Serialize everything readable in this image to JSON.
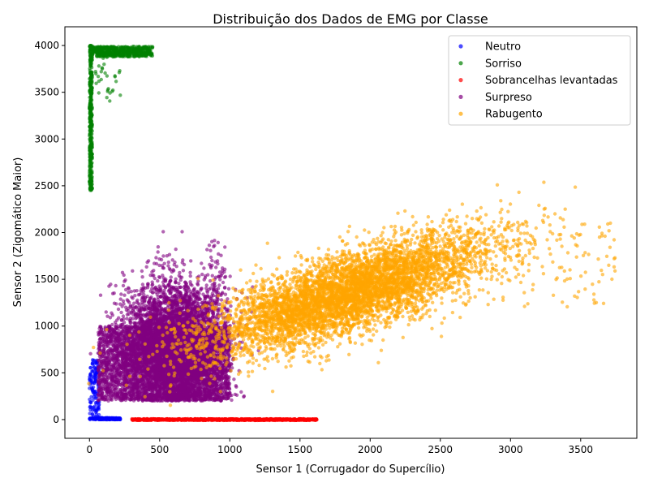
{
  "chart_data": {
    "type": "scatter",
    "title": "Distribuição dos Dados de EMG por Classe",
    "xlabel": "Sensor 1 (Corrugador do Supercílio)",
    "ylabel": "Sensor 2 (Zigomático Maior)",
    "xlim": [
      -175,
      3900
    ],
    "ylim": [
      -200,
      4200
    ],
    "xticks": [
      0,
      500,
      1000,
      1500,
      2000,
      2500,
      3000,
      3500
    ],
    "yticks": [
      0,
      500,
      1000,
      1500,
      2000,
      2500,
      3000,
      3500,
      4000
    ],
    "grid": false,
    "legend_position": "top-right",
    "series": [
      {
        "name": "Neutro",
        "color": "#0000ff",
        "clusters": [
          {
            "kind": "box",
            "x": [
              0,
              220
            ],
            "y": [
              0,
              20
            ],
            "n": 220
          },
          {
            "kind": "box",
            "x": [
              0,
              70
            ],
            "y": [
              20,
              640
            ],
            "n": 140
          }
        ]
      },
      {
        "name": "Sorriso",
        "color": "#008000",
        "clusters": [
          {
            "kind": "box",
            "x": [
              0,
              20
            ],
            "y": [
              2450,
              4000
            ],
            "n": 420
          },
          {
            "kind": "box",
            "x": [
              20,
              450
            ],
            "y": [
              3880,
              3990
            ],
            "n": 520
          },
          {
            "kind": "box",
            "x": [
              40,
              230
            ],
            "y": [
              3400,
              3880
            ],
            "n": 30
          }
        ]
      },
      {
        "name": "Sobrancelhas levantadas",
        "color": "#ff0000",
        "clusters": [
          {
            "kind": "box",
            "x": [
              300,
              1620
            ],
            "y": [
              -8,
              8
            ],
            "n": 900
          }
        ]
      },
      {
        "name": "Surpreso",
        "color": "#800080",
        "clusters": [
          {
            "kind": "box",
            "x": [
              60,
              1000
            ],
            "y": [
              200,
              1000
            ],
            "n": 3200
          },
          {
            "kind": "gauss",
            "cx": 500,
            "cy": 800,
            "sx": 140,
            "sy": 320,
            "n": 2600
          },
          {
            "kind": "gauss",
            "cx": 720,
            "cy": 800,
            "sx": 140,
            "sy": 320,
            "n": 2600
          },
          {
            "kind": "box",
            "x": [
              850,
              970
            ],
            "y": [
              1200,
              1950
            ],
            "n": 60
          }
        ]
      },
      {
        "name": "Rabugento",
        "color": "#ffa500",
        "clusters": [
          {
            "kind": "corr",
            "cx": 1850,
            "cy": 1350,
            "sx": 500,
            "sy": 320,
            "r": 0.75,
            "n": 5500
          },
          {
            "kind": "box",
            "x": [
              2600,
              3750
            ],
            "y": [
              1200,
              2150
            ],
            "n": 140
          }
        ]
      }
    ]
  }
}
